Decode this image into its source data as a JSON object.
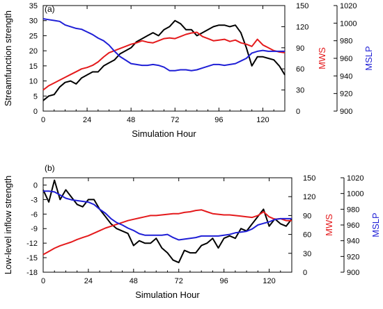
{
  "chart_data": [
    {
      "panel_label": "(a)",
      "type": "line",
      "xlabel": "Simulation Hour",
      "x_ticks": [
        0,
        24,
        48,
        72,
        96,
        120
      ],
      "xlim": [
        0,
        132
      ],
      "grid": false,
      "legend": "none",
      "axes": {
        "left": {
          "label": "Streamfunction strength",
          "lim": [
            0,
            35
          ],
          "ticks": [
            0,
            5,
            10,
            15,
            20,
            25,
            30,
            35
          ],
          "color": "#000000"
        },
        "right1": {
          "label": "MWS",
          "lim": [
            0,
            150
          ],
          "ticks": [
            0,
            30,
            60,
            90,
            120,
            150
          ],
          "color": "#e41a1c"
        },
        "right2": {
          "label": "MSLP",
          "lim": [
            900,
            1020
          ],
          "ticks": [
            900,
            920,
            940,
            960,
            980,
            1000,
            1020
          ],
          "color": "#1f1fd6"
        }
      },
      "x": [
        0,
        3,
        6,
        9,
        12,
        15,
        18,
        21,
        24,
        27,
        30,
        33,
        36,
        39,
        42,
        45,
        48,
        51,
        54,
        57,
        60,
        63,
        66,
        69,
        72,
        75,
        78,
        81,
        84,
        87,
        90,
        93,
        96,
        99,
        102,
        105,
        108,
        111,
        114,
        117,
        120,
        123,
        126,
        129,
        132
      ],
      "series": [
        {
          "name": "Streamfunction strength",
          "axis": "left",
          "color": "#000000",
          "values": [
            3.5,
            5,
            5.5,
            8,
            9.5,
            10,
            9,
            11,
            12,
            13,
            13,
            15,
            16,
            17,
            19,
            20,
            21,
            23,
            24,
            25,
            26,
            25,
            27,
            28,
            30,
            29,
            27,
            27,
            25,
            26,
            27,
            28,
            28.5,
            28.5,
            28,
            28.5,
            26,
            21,
            15,
            18,
            18,
            17.5,
            17,
            15,
            12
          ]
        },
        {
          "name": "MWS",
          "axis": "right1",
          "color": "#e41a1c",
          "values": [
            30,
            36,
            40,
            44,
            48,
            52,
            56,
            60,
            62,
            65,
            70,
            77,
            83,
            86,
            89,
            92,
            95,
            97,
            100,
            98,
            97,
            100,
            103,
            104,
            103,
            106,
            109,
            111,
            112,
            106,
            103,
            100,
            101,
            102,
            99,
            101,
            97,
            95,
            92,
            102,
            94,
            90,
            86,
            84,
            83
          ]
        },
        {
          "name": "MSLP",
          "axis": "right2",
          "color": "#1f1fd6",
          "values": [
            1005,
            1004,
            1003,
            1002,
            998,
            996,
            994,
            993,
            990,
            987,
            983,
            980,
            975,
            968,
            962,
            958,
            954,
            953,
            952,
            952,
            953,
            952,
            950,
            946,
            946,
            947,
            947,
            946,
            947,
            949,
            951,
            953,
            953,
            952,
            953,
            954,
            957,
            960,
            966,
            968,
            969,
            968,
            968,
            968,
            968
          ]
        }
      ]
    },
    {
      "panel_label": "(b)",
      "type": "line",
      "xlabel": "Simulation Hour",
      "x_ticks": [
        0,
        24,
        48,
        72,
        96,
        120
      ],
      "xlim": [
        0,
        132
      ],
      "grid": false,
      "legend": "none",
      "axes": {
        "left": {
          "label": "Low-level inflow strength",
          "lim": [
            -18,
            1.5
          ],
          "ticks": [
            -18,
            -15,
            -12,
            -9,
            -6,
            -3,
            0
          ],
          "color": "#000000"
        },
        "right1": {
          "label": "MWS",
          "lim": [
            0,
            150
          ],
          "ticks": [
            0,
            30,
            60,
            90,
            120,
            150
          ],
          "color": "#e41a1c"
        },
        "right2": {
          "label": "MSLP",
          "lim": [
            900,
            1020
          ],
          "ticks": [
            900,
            920,
            940,
            960,
            980,
            1000,
            1020
          ],
          "color": "#1f1fd6"
        }
      },
      "x": [
        0,
        3,
        6,
        9,
        12,
        15,
        18,
        21,
        24,
        27,
        30,
        33,
        36,
        39,
        42,
        45,
        48,
        51,
        54,
        57,
        60,
        63,
        66,
        69,
        72,
        75,
        78,
        81,
        84,
        87,
        90,
        93,
        96,
        99,
        102,
        105,
        108,
        111,
        114,
        117,
        120,
        123,
        126,
        129,
        132
      ],
      "series": [
        {
          "name": "Low-level inflow strength",
          "axis": "left",
          "color": "#000000",
          "values": [
            -1,
            -3.5,
            1,
            -3,
            -1,
            -2.5,
            -4,
            -4.5,
            -3,
            -3,
            -5,
            -6.5,
            -8,
            -9,
            -9.5,
            -10,
            -12.5,
            -11.5,
            -12,
            -12,
            -11,
            -13,
            -14,
            -15.5,
            -16,
            -13.5,
            -14,
            -14,
            -12.5,
            -12,
            -11,
            -13,
            -11,
            -10.5,
            -11,
            -9,
            -9.5,
            -8,
            -6.5,
            -5,
            -8.5,
            -7,
            -8,
            -8.5,
            -7
          ]
        },
        {
          "name": "MWS",
          "axis": "right1",
          "color": "#e41a1c",
          "values": [
            28,
            33,
            38,
            42,
            45,
            48,
            52,
            55,
            58,
            62,
            66,
            70,
            73,
            76,
            79,
            82,
            84,
            86,
            88,
            90,
            90,
            91,
            92,
            93,
            93,
            95,
            96,
            98,
            99,
            96,
            93,
            92,
            91,
            91,
            90,
            89,
            88,
            87,
            90,
            96,
            88,
            84,
            85,
            82,
            82
          ]
        },
        {
          "name": "MSLP",
          "axis": "right2",
          "color": "#1f1fd6",
          "values": [
            1003,
            1003,
            1002,
            998,
            994,
            992,
            991,
            990,
            989,
            986,
            980,
            975,
            968,
            963,
            960,
            956,
            953,
            949,
            947,
            947,
            947,
            947,
            948,
            944,
            941,
            942,
            943,
            944,
            946,
            946,
            946,
            946,
            947,
            948,
            950,
            951,
            952,
            955,
            960,
            962,
            964,
            967,
            968,
            968,
            968
          ]
        }
      ]
    }
  ]
}
